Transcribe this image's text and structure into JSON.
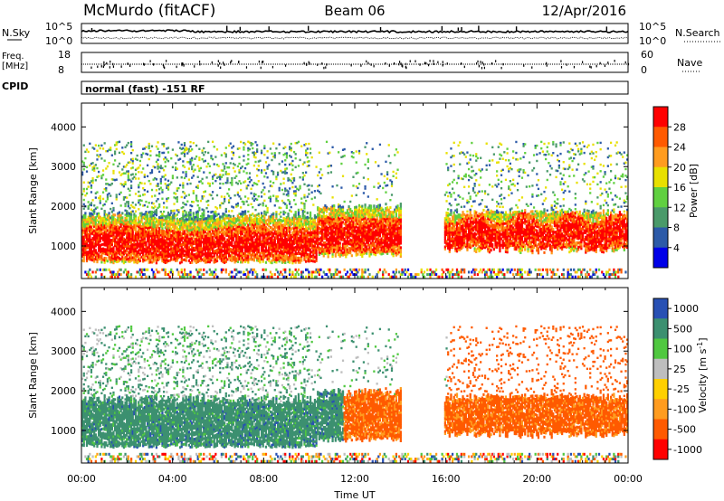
{
  "header": {
    "station": "McMurdo (fitACF)",
    "beam": "Beam 06",
    "date": "12/Apr/2016"
  },
  "status_panels": {
    "nsky_label": "N.Sky",
    "nsky_scale_top": "10^5",
    "nsky_scale_bottom": "10^0",
    "nsearch_label": "N.Search",
    "nsearch_scale_top": "10^5",
    "nsearch_scale_bottom": "10^0",
    "freq_label_1": "Freq.",
    "freq_label_2": "[MHz]",
    "freq_scale_top": "18",
    "freq_scale_bottom": "8",
    "nave_label": "Nave",
    "nave_scale_top": "60",
    "nave_scale_bottom": "0",
    "cpid_label": "CPID",
    "cpid_text": "normal (fast) -151 RF"
  },
  "chart_data": [
    {
      "type": "heatmap",
      "parameter": "Power",
      "ylabel": "Slant Range [km]",
      "yticks": [
        1000,
        2000,
        3000,
        4000
      ],
      "ylim": [
        180,
        4600
      ],
      "xlim": [
        0,
        24
      ],
      "colorbar_label": "Power [dB]",
      "colorbar_ticks": [
        "28",
        "24",
        "20",
        "16",
        "12",
        "8",
        "4"
      ],
      "colorbar_colors": [
        "#ff0000",
        "#ff5a00",
        "#ff9c1f",
        "#e8e000",
        "#60d040",
        "#4a9a6a",
        "#2c5aa8",
        "#0000e8"
      ]
    },
    {
      "type": "heatmap",
      "parameter": "Velocity",
      "ylabel": "Slant Range [km]",
      "yticks": [
        1000,
        2000,
        3000,
        4000
      ],
      "ylim": [
        180,
        4600
      ],
      "xlim": [
        0,
        24
      ],
      "colorbar_label": "Velocity [m s",
      "colorbar_label_sup": "-1",
      "colorbar_label_end": "]",
      "colorbar_ticks": [
        "1000",
        "500",
        "100",
        "25",
        "-25",
        "-100",
        "-500",
        "-1000"
      ],
      "colorbar_colors": [
        "#2850b4",
        "#3c9070",
        "#50c840",
        "#bebebe",
        "#ffd000",
        "#ff9c1f",
        "#ff5a00",
        "#ff0000"
      ]
    }
  ],
  "xaxis": {
    "ticks": [
      "00:00",
      "04:00",
      "08:00",
      "12:00",
      "16:00",
      "20:00",
      "00:00"
    ],
    "tick_hours": [
      0,
      4,
      8,
      12,
      16,
      20,
      24
    ],
    "label": "Time UT"
  }
}
